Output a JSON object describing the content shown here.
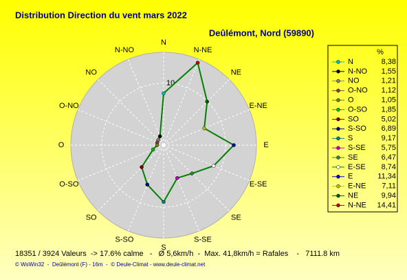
{
  "chart_data": {
    "type": "radar",
    "title": "Distribution Direction du vent   mars 2022",
    "subtitle": "Deûlémont, Nord (59890)",
    "legend_title": "%",
    "angular_direction": "counterclockwise",
    "categories": [
      "N",
      "N-NO",
      "NO",
      "O-NO",
      "O",
      "O-SO",
      "SO",
      "S-SO",
      "S",
      "S-SE",
      "SE",
      "E-SE",
      "E",
      "E-NE",
      "NE",
      "N-NE"
    ],
    "values": [
      8.38,
      1.55,
      1.21,
      1.12,
      1.05,
      1.85,
      5.02,
      6.89,
      9.17,
      5.75,
      6.47,
      8.74,
      11.34,
      7.11,
      9.94,
      14.41
    ],
    "value_labels": [
      "8,38",
      "1,55",
      "1,21",
      "1,12",
      "1,05",
      "1,85",
      "5,02",
      "6,89",
      "9,17",
      "5,75",
      "6,47",
      "8,74",
      "11,34",
      "7,11",
      "9,94",
      "14,41"
    ],
    "colors": [
      "#00c0c0",
      "#000000",
      "#808080",
      "#804040",
      "#808000",
      "#00c000",
      "#800000",
      "#000080",
      "#008080",
      "#c000c0",
      "#408040",
      "#ffffff",
      "#0000c0",
      "#c0c000",
      "#006000",
      "#c00000"
    ],
    "line_color": "#008000",
    "rlim": [
      0,
      15
    ],
    "rticks": [
      10
    ],
    "footer": "18351 / 3924 Valeurs  -> 17.6% calme   -   Ø 5,6km/h  -  Max. 41,8km/h = Rafales    -   7111.8 km",
    "credit": "© WsWin32  -  Deûlémont (F) - 16m  -  © Deule-Climat - www.deule-climat.net"
  }
}
